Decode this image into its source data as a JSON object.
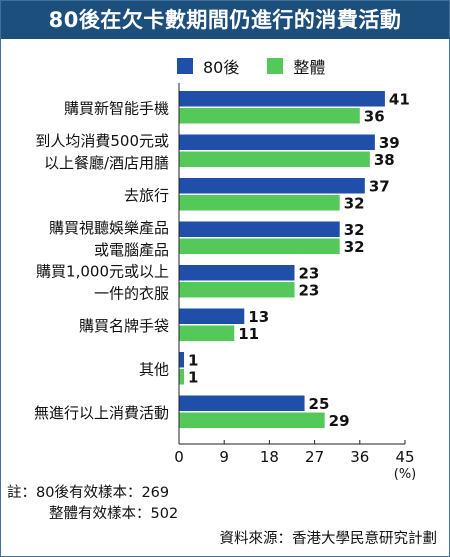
{
  "title": "80後在欠卡數期間仍進行的消費活動",
  "legend": [
    {
      "label": "80後",
      "color": "#1f4fa8"
    },
    {
      "label": "整體",
      "color": "#55c85a"
    }
  ],
  "chart_data": {
    "type": "bar",
    "orientation": "horizontal",
    "title": "80後在欠卡數期間仍進行的消費活動",
    "categories": [
      [
        "購買新智能手機"
      ],
      [
        "到人均消費500元或",
        "以上餐廳/酒店用膳"
      ],
      [
        "去旅行"
      ],
      [
        "購買視聽娛樂產品",
        "或電腦產品"
      ],
      [
        "購買1,000元或以上",
        "一件的衣服"
      ],
      [
        "購買名牌手袋"
      ],
      [
        "其他"
      ],
      [
        "無進行以上消費活動"
      ]
    ],
    "series": [
      {
        "name": "80後",
        "color": "#1f4fa8",
        "values": [
          41,
          39,
          37,
          32,
          23,
          13,
          1,
          25
        ]
      },
      {
        "name": "整體",
        "color": "#55c85a",
        "values": [
          36,
          38,
          32,
          32,
          23,
          11,
          1,
          29
        ]
      }
    ],
    "xlim": [
      0,
      45
    ],
    "xticks": [
      "0",
      "9",
      "18",
      "27",
      "36",
      "45"
    ],
    "unit": "(%)",
    "grid": false,
    "legend_position": "top"
  },
  "notes": {
    "line1_prefix": "註：",
    "line1": "80後有效樣本：269",
    "line2": "整體有效樣本：502"
  },
  "source": "資料來源：香港大學民意研究計劃"
}
